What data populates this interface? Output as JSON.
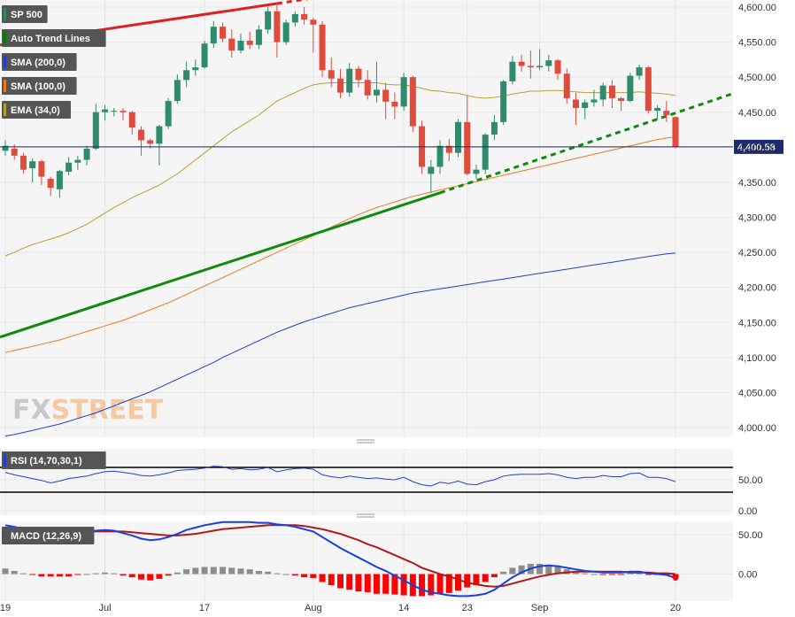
{
  "chart_data": [
    {
      "type": "candlestick",
      "title": "",
      "ylim": [
        3985,
        4610
      ],
      "yticks": [
        4000,
        4050,
        4100,
        4150,
        4200,
        4250,
        4300,
        4350,
        4400,
        4450,
        4500,
        4550,
        4600
      ],
      "ytick_labels": [
        "4,000.00",
        "4,050.00",
        "4,100.00",
        "4,150.00",
        "4,200.00",
        "4,250.00",
        "4,300.00",
        "4,350.00",
        "4,400.00",
        "4,450.00",
        "4,500.00",
        "4,550.00",
        "4,600.00"
      ],
      "x_labels": [
        {
          "label": "19",
          "index": 0
        },
        {
          "label": "Jul",
          "index": 11
        },
        {
          "label": "17",
          "index": 22
        },
        {
          "label": "Aug",
          "index": 34
        },
        {
          "label": "14",
          "index": 44
        },
        {
          "label": "23",
          "index": 51
        },
        {
          "label": "Sep",
          "index": 59
        },
        {
          "label": "20",
          "index": 74
        }
      ],
      "legend": [
        {
          "name": "SP 500",
          "color": "#2e8b57"
        },
        {
          "name": "Auto Trend Lines",
          "color": "#008000"
        },
        {
          "name": "SMA (200,0)",
          "color": "#1f3fd1"
        },
        {
          "name": "SMA (100,0)",
          "color": "#f07820"
        },
        {
          "name": "EMA (34,0)",
          "color": "#b5a032"
        }
      ],
      "last_price_label": "4,400.58",
      "last_price": 4400.58,
      "candles": [
        [
          4395,
          4410,
          4388,
          4402
        ],
        [
          4398,
          4404,
          4382,
          4388
        ],
        [
          4388,
          4392,
          4362,
          4368
        ],
        [
          4370,
          4384,
          4350,
          4380
        ],
        [
          4380,
          4382,
          4346,
          4358
        ],
        [
          4355,
          4358,
          4330,
          4342
        ],
        [
          4340,
          4368,
          4328,
          4366
        ],
        [
          4365,
          4386,
          4360,
          4378
        ],
        [
          4378,
          4388,
          4368,
          4382
        ],
        [
          4382,
          4402,
          4374,
          4398
        ],
        [
          4398,
          4462,
          4396,
          4450
        ],
        [
          4450,
          4460,
          4438,
          4454
        ],
        [
          4452,
          4456,
          4444,
          4452
        ],
        [
          4452,
          4456,
          4438,
          4450
        ],
        [
          4450,
          4452,
          4418,
          4428
        ],
        [
          4425,
          4430,
          4388,
          4410
        ],
        [
          4410,
          4412,
          4398,
          4405
        ],
        [
          4405,
          4432,
          4374,
          4430
        ],
        [
          4430,
          4470,
          4426,
          4466
        ],
        [
          4466,
          4504,
          4462,
          4496
        ],
        [
          4496,
          4522,
          4486,
          4510
        ],
        [
          4510,
          4525,
          4502,
          4514
        ],
        [
          4514,
          4552,
          4512,
          4548
        ],
        [
          4548,
          4580,
          4542,
          4572
        ],
        [
          4572,
          4578,
          4550,
          4555
        ],
        [
          4555,
          4568,
          4528,
          4538
        ],
        [
          4538,
          4562,
          4534,
          4552
        ],
        [
          4552,
          4565,
          4540,
          4546
        ],
        [
          4546,
          4574,
          4540,
          4568
        ],
        [
          4568,
          4600,
          4562,
          4594
        ],
        [
          4594,
          4605,
          4528,
          4550
        ],
        [
          4550,
          4582,
          4546,
          4578
        ],
        [
          4578,
          4594,
          4572,
          4590
        ],
        [
          4590,
          4600,
          4575,
          4582
        ],
        [
          4582,
          4585,
          4535,
          4575
        ],
        [
          4575,
          4580,
          4500,
          4510
        ],
        [
          4510,
          4528,
          4486,
          4498
        ],
        [
          4498,
          4512,
          4470,
          4478
        ],
        [
          4478,
          4520,
          4472,
          4512
        ],
        [
          4512,
          4516,
          4485,
          4496
        ],
        [
          4496,
          4510,
          4468,
          4474
        ],
        [
          4474,
          4522,
          4464,
          4482
        ],
        [
          4482,
          4492,
          4440,
          4465
        ],
        [
          4465,
          4478,
          4440,
          4458
        ],
        [
          4458,
          4506,
          4452,
          4500
        ],
        [
          4500,
          4502,
          4422,
          4430
        ],
        [
          4430,
          4438,
          4362,
          4372
        ],
        [
          4362,
          4382,
          4335,
          4372
        ],
        [
          4372,
          4410,
          4362,
          4402
        ],
        [
          4402,
          4412,
          4380,
          4392
        ],
        [
          4392,
          4440,
          4386,
          4436
        ],
        [
          4436,
          4474,
          4360,
          4362
        ],
        [
          4362,
          4375,
          4355,
          4368
        ],
        [
          4368,
          4420,
          4362,
          4418
        ],
        [
          4418,
          4446,
          4410,
          4436
        ],
        [
          4436,
          4496,
          4432,
          4494
        ],
        [
          4494,
          4530,
          4490,
          4522
        ],
        [
          4522,
          4532,
          4508,
          4516
        ],
        [
          4516,
          4538,
          4498,
          4514
        ],
        [
          4514,
          4540,
          4510,
          4516
        ],
        [
          4516,
          4532,
          4508,
          4524
        ],
        [
          4524,
          4526,
          4496,
          4505
        ],
        [
          4505,
          4512,
          4462,
          4470
        ],
        [
          4468,
          4478,
          4432,
          4456
        ],
        [
          4456,
          4468,
          4440,
          4464
        ],
        [
          4464,
          4482,
          4458,
          4468
        ],
        [
          4468,
          4492,
          4458,
          4488
        ],
        [
          4488,
          4496,
          4456,
          4470
        ],
        [
          4470,
          4472,
          4452,
          4466
        ],
        [
          4466,
          4506,
          4464,
          4502
        ],
        [
          4502,
          4518,
          4496,
          4514
        ],
        [
          4514,
          4516,
          4448,
          4452
        ],
        [
          4452,
          4460,
          4440,
          4456
        ],
        [
          4452,
          4466,
          4436,
          4446
        ],
        [
          4443,
          4444,
          4398,
          4400.58
        ]
      ],
      "sma200": [
        3988,
        3990,
        3993,
        3996,
        3999,
        4002,
        4005,
        4009,
        4013,
        4017,
        4021,
        4026,
        4031,
        4036,
        4041,
        4046,
        4051,
        4057,
        4063,
        4069,
        4075,
        4081,
        4087,
        4093,
        4100,
        4106,
        4112,
        4118,
        4124,
        4130,
        4136,
        4141,
        4146,
        4151,
        4155,
        4159,
        4163,
        4167,
        4171,
        4174,
        4177,
        4180,
        4183,
        4186,
        4189,
        4192,
        4194,
        4196,
        4198,
        4200,
        4202,
        4204,
        4206,
        4208,
        4210,
        4212,
        4214,
        4216,
        4218,
        4220,
        4222,
        4224,
        4226,
        4228,
        4230,
        4232,
        4234,
        4236,
        4238,
        4240,
        4242,
        4244,
        4246,
        4248,
        4249
      ],
      "sma100": [
        4107,
        4110,
        4113,
        4116,
        4119,
        4122,
        4125,
        4129,
        4133,
        4137,
        4141,
        4145,
        4149,
        4153,
        4158,
        4163,
        4168,
        4173,
        4178,
        4184,
        4190,
        4196,
        4202,
        4208,
        4214,
        4220,
        4226,
        4232,
        4238,
        4244,
        4250,
        4256,
        4262,
        4268,
        4274,
        4280,
        4286,
        4292,
        4298,
        4304,
        4309,
        4314,
        4318,
        4322,
        4326,
        4330,
        4333,
        4336,
        4339,
        4342,
        4345,
        4348,
        4351,
        4354,
        4357,
        4360,
        4363,
        4366,
        4369,
        4372,
        4375,
        4378,
        4381,
        4384,
        4387,
        4390,
        4393,
        4396,
        4399,
        4402,
        4405,
        4408,
        4411,
        4413,
        4415
      ],
      "ema34": [
        4245,
        4250,
        4256,
        4261,
        4265,
        4269,
        4273,
        4278,
        4284,
        4290,
        4298,
        4306,
        4314,
        4321,
        4328,
        4334,
        4340,
        4346,
        4354,
        4362,
        4372,
        4382,
        4392,
        4402,
        4412,
        4422,
        4430,
        4438,
        4446,
        4456,
        4466,
        4472,
        4478,
        4484,
        4489,
        4491,
        4492,
        4492,
        4492,
        4492,
        4492,
        4492,
        4490,
        4489,
        4489,
        4487,
        4484,
        4481,
        4480,
        4478,
        4477,
        4474,
        4471,
        4470,
        4471,
        4473,
        4476,
        4478,
        4480,
        4480,
        4481,
        4481,
        4480,
        4479,
        4478,
        4478,
        4478,
        4478,
        4478,
        4478,
        4479,
        4478,
        4477,
        4476,
        4474
      ]
    },
    {
      "type": "line",
      "legend": [
        {
          "name": "RSI (14,70,30,1)",
          "color": "#1f3fd1"
        }
      ],
      "ylim": [
        0,
        100
      ],
      "yticks": [
        0,
        50
      ],
      "ytick_labels": [
        "0.00",
        "50.00"
      ],
      "levels": [
        70,
        30
      ],
      "rsi": [
        62,
        58,
        55,
        52,
        49,
        45,
        48,
        52,
        54,
        56,
        60,
        63,
        64,
        62,
        60,
        57,
        56,
        58,
        61,
        65,
        66,
        67,
        69,
        72,
        71,
        67,
        68,
        66,
        67,
        70,
        63,
        66,
        68,
        69,
        67,
        58,
        55,
        53,
        56,
        54,
        52,
        53,
        51,
        50,
        54,
        47,
        42,
        40,
        46,
        44,
        48,
        43,
        42,
        47,
        50,
        56,
        58,
        59,
        59,
        59,
        60,
        58,
        54,
        52,
        54,
        54,
        57,
        55,
        55,
        60,
        61,
        54,
        54,
        52,
        47
      ]
    },
    {
      "type": "bar+line",
      "legend": [
        {
          "name": "MACD (12,26,9)",
          "color": "#555555"
        }
      ],
      "ylim": [
        -31,
        75
      ],
      "yticks": [
        0,
        50
      ],
      "ytick_labels": [
        "0.00",
        "50.00"
      ],
      "macd": [
        62,
        60,
        57,
        55,
        53,
        52,
        52,
        52,
        53,
        54,
        55,
        56,
        55,
        52,
        49,
        45,
        43,
        44,
        47,
        51,
        56,
        59,
        62,
        64,
        66,
        66,
        66,
        66,
        65,
        65,
        63,
        62,
        60,
        57,
        54,
        47,
        40,
        33,
        27,
        21,
        15,
        9,
        4,
        -2,
        -8,
        -14,
        -20,
        -23,
        -25,
        -27,
        -28,
        -28,
        -27,
        -25,
        -20,
        -12,
        -4,
        2,
        7,
        10,
        11,
        10,
        8,
        6,
        4,
        3,
        2,
        2,
        2,
        3,
        3,
        1,
        0,
        -1,
        -5
      ],
      "signal": [
        55,
        56,
        56,
        56,
        56,
        55,
        55,
        55,
        54,
        54,
        54,
        54,
        54,
        54,
        53,
        52,
        51,
        50,
        49,
        49,
        50,
        51,
        53,
        55,
        57,
        58,
        59,
        60,
        61,
        62,
        62,
        62,
        62,
        61,
        59,
        57,
        54,
        51,
        47,
        43,
        38,
        34,
        29,
        24,
        19,
        14,
        8,
        4,
        0,
        -3,
        -7,
        -11,
        -13,
        -15,
        -16,
        -15,
        -12,
        -9,
        -6,
        -3,
        -1,
        1,
        2,
        3,
        3,
        3,
        3,
        3,
        3,
        2,
        2,
        2,
        1,
        1,
        0
      ],
      "hist": [
        7,
        4,
        1,
        -1,
        -3,
        -3,
        -3,
        -3,
        -1,
        0,
        1,
        2,
        1,
        -2,
        -4,
        -7,
        -8,
        -6,
        -2,
        2,
        6,
        8,
        9,
        9,
        9,
        8,
        7,
        6,
        4,
        3,
        1,
        0,
        -2,
        -4,
        -5,
        -10,
        -14,
        -18,
        -20,
        -22,
        -23,
        -25,
        -25,
        -26,
        -27,
        -28,
        -28,
        -27,
        -25,
        -24,
        -21,
        -17,
        -14,
        -10,
        -4,
        3,
        8,
        11,
        13,
        13,
        12,
        9,
        6,
        3,
        1,
        0,
        -1,
        -1,
        -1,
        1,
        1,
        -1,
        -1,
        -2,
        -5
      ]
    }
  ],
  "watermark": {
    "part1": "FX",
    "part2": "STREET"
  }
}
